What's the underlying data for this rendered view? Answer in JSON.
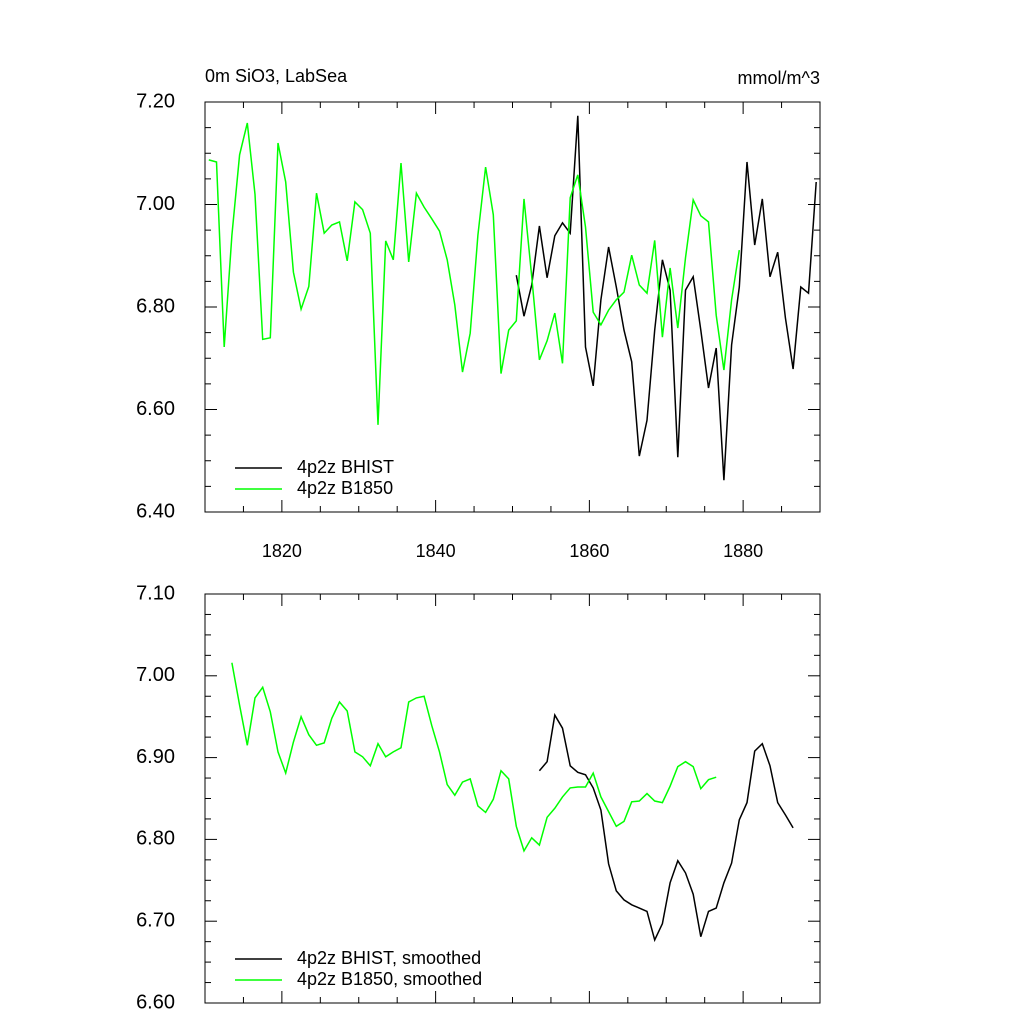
{
  "chart_data": [
    {
      "type": "line",
      "title": "0m SiO3, LabSea",
      "units": "mmol/m^3",
      "xlim": [
        1810,
        1890
      ],
      "xticks": [
        1820,
        1840,
        1860,
        1880
      ],
      "xtick_labels": true,
      "ylim": [
        6.4,
        7.2
      ],
      "yticks": [
        {
          "value": 6.4,
          "label": "6.40"
        },
        {
          "value": 6.6,
          "label": "6.60"
        },
        {
          "value": 6.8,
          "label": "6.80"
        },
        {
          "value": 7.0,
          "label": "7.00"
        },
        {
          "value": 7.2,
          "label": "7.20"
        }
      ],
      "legend": "lower left",
      "series": [
        {
          "name": "4p2z BHIST",
          "color": "#000000",
          "x": [
            1850.5,
            1851.5,
            1852.5,
            1853.5,
            1854.5,
            1855.5,
            1856.5,
            1857.5,
            1858.5,
            1859.5,
            1860.5,
            1861.5,
            1862.5,
            1863.5,
            1864.5,
            1865.5,
            1866.5,
            1867.5,
            1868.5,
            1869.5,
            1870.5,
            1871.5,
            1872.5,
            1873.5,
            1874.5,
            1875.5,
            1876.5,
            1877.5,
            1878.5,
            1879.5,
            1880.5,
            1881.5,
            1882.5,
            1883.5,
            1884.5,
            1885.5,
            1886.5,
            1887.5,
            1888.5,
            1889.5
          ],
          "values": [
            6.862,
            6.782,
            6.843,
            6.958,
            6.857,
            6.939,
            6.964,
            6.944,
            7.173,
            6.722,
            6.646,
            6.814,
            6.917,
            6.839,
            6.755,
            6.693,
            6.509,
            6.579,
            6.755,
            6.892,
            6.833,
            6.507,
            6.833,
            6.859,
            6.755,
            6.642,
            6.72,
            6.462,
            6.726,
            6.839,
            7.083,
            6.921,
            7.011,
            6.859,
            6.907,
            6.779,
            6.679,
            6.839,
            6.827,
            7.044
          ]
        },
        {
          "name": "4p2z B1850",
          "color": "#00ff00",
          "x": [
            1810.5,
            1811.5,
            1812.5,
            1813.5,
            1814.5,
            1815.5,
            1816.5,
            1817.5,
            1818.5,
            1819.5,
            1820.5,
            1821.5,
            1822.5,
            1823.5,
            1824.5,
            1825.5,
            1826.5,
            1827.5,
            1828.5,
            1829.5,
            1830.5,
            1831.5,
            1832.5,
            1833.5,
            1834.5,
            1835.5,
            1836.5,
            1837.5,
            1838.5,
            1839.5,
            1840.5,
            1841.5,
            1842.5,
            1843.5,
            1844.5,
            1845.5,
            1846.5,
            1847.5,
            1848.5,
            1849.5,
            1850.5,
            1851.5,
            1852.5,
            1853.5,
            1854.5,
            1855.5,
            1856.5,
            1857.5,
            1858.5,
            1859.5,
            1860.5,
            1861.5,
            1862.5,
            1863.5,
            1864.5,
            1865.5,
            1866.5,
            1867.5,
            1868.5,
            1869.5,
            1870.5,
            1871.5,
            1872.5,
            1873.5,
            1874.5,
            1875.5,
            1876.5,
            1877.5,
            1878.5,
            1879.5
          ],
          "values": [
            7.087,
            7.083,
            6.722,
            6.94,
            7.097,
            7.159,
            7.02,
            6.737,
            6.74,
            7.12,
            7.044,
            6.868,
            6.796,
            6.84,
            7.022,
            6.944,
            6.96,
            6.966,
            6.89,
            7.005,
            6.99,
            6.944,
            6.57,
            6.929,
            6.892,
            7.081,
            6.888,
            7.022,
            6.995,
            6.972,
            6.948,
            6.892,
            6.804,
            6.673,
            6.749,
            6.94,
            7.073,
            6.98,
            6.67,
            6.755,
            6.773,
            7.011,
            6.86,
            6.697,
            6.734,
            6.788,
            6.69,
            7.013,
            7.058,
            6.956,
            6.79,
            6.765,
            6.794,
            6.814,
            6.829,
            6.901,
            6.843,
            6.827,
            6.93,
            6.741,
            6.876,
            6.759,
            6.896,
            7.009,
            6.978,
            6.966,
            6.784,
            6.677,
            6.814,
            6.911
          ]
        }
      ]
    },
    {
      "type": "line",
      "xlim": [
        1810,
        1890
      ],
      "xticks": [
        1820,
        1840,
        1860,
        1880
      ],
      "xtick_labels": false,
      "ylim": [
        6.6,
        7.1
      ],
      "yticks": [
        {
          "value": 6.6,
          "label": "6.60"
        },
        {
          "value": 6.7,
          "label": "6.70"
        },
        {
          "value": 6.8,
          "label": "6.80"
        },
        {
          "value": 6.9,
          "label": "6.90"
        },
        {
          "value": 7.0,
          "label": "7.00"
        },
        {
          "value": 7.1,
          "label": "7.10"
        }
      ],
      "legend": "lower left",
      "series": [
        {
          "name": "4p2z BHIST, smoothed",
          "color": "#000000",
          "x": [
            1853.5,
            1854.5,
            1855.5,
            1856.5,
            1857.5,
            1858.5,
            1859.5,
            1860.5,
            1861.5,
            1862.5,
            1863.5,
            1864.5,
            1865.5,
            1866.5,
            1867.5,
            1868.5,
            1869.5,
            1870.5,
            1871.5,
            1872.5,
            1873.5,
            1874.5,
            1875.5,
            1876.5,
            1877.5,
            1878.5,
            1879.5,
            1880.5,
            1881.5,
            1882.5,
            1883.5,
            1884.5,
            1885.5,
            1886.5
          ],
          "values": [
            6.884,
            6.895,
            6.952,
            6.936,
            6.89,
            6.882,
            6.879,
            6.863,
            6.836,
            6.77,
            6.737,
            6.726,
            6.72,
            6.716,
            6.712,
            6.677,
            6.697,
            6.747,
            6.774,
            6.759,
            6.733,
            6.681,
            6.712,
            6.716,
            6.747,
            6.771,
            6.824,
            6.845,
            6.908,
            6.917,
            6.89,
            6.845,
            6.83,
            6.814
          ]
        },
        {
          "name": "4p2z B1850, smoothed",
          "color": "#00ff00",
          "x": [
            1813.5,
            1814.5,
            1815.5,
            1816.5,
            1817.5,
            1818.5,
            1819.5,
            1820.5,
            1821.5,
            1822.5,
            1823.5,
            1824.5,
            1825.5,
            1826.5,
            1827.5,
            1828.5,
            1829.5,
            1830.5,
            1831.5,
            1832.5,
            1833.5,
            1834.5,
            1835.5,
            1836.5,
            1837.5,
            1838.5,
            1839.5,
            1840.5,
            1841.5,
            1842.5,
            1843.5,
            1844.5,
            1845.5,
            1846.5,
            1847.5,
            1848.5,
            1849.5,
            1850.5,
            1851.5,
            1852.5,
            1853.5,
            1854.5,
            1855.5,
            1856.5,
            1857.5,
            1858.5,
            1859.5,
            1860.5,
            1861.5,
            1862.5,
            1863.5,
            1864.5,
            1865.5,
            1866.5,
            1867.5,
            1868.5,
            1869.5,
            1870.5,
            1871.5,
            1872.5,
            1873.5,
            1874.5,
            1875.5,
            1876.5
          ],
          "values": [
            7.016,
            6.964,
            6.915,
            6.973,
            6.986,
            6.956,
            6.907,
            6.881,
            6.919,
            6.95,
            6.928,
            6.915,
            6.918,
            6.948,
            6.968,
            6.957,
            6.907,
            6.901,
            6.89,
            6.917,
            6.901,
            6.907,
            6.912,
            6.968,
            6.973,
            6.975,
            6.939,
            6.907,
            6.867,
            6.854,
            6.87,
            6.874,
            6.841,
            6.833,
            6.849,
            6.884,
            6.874,
            6.816,
            6.786,
            6.802,
            6.793,
            6.827,
            6.838,
            6.852,
            6.863,
            6.864,
            6.864,
            6.881,
            6.852,
            6.834,
            6.816,
            6.822,
            6.846,
            6.847,
            6.856,
            6.847,
            6.845,
            6.865,
            6.889,
            6.895,
            6.889,
            6.862,
            6.873,
            6.876
          ]
        }
      ]
    }
  ]
}
